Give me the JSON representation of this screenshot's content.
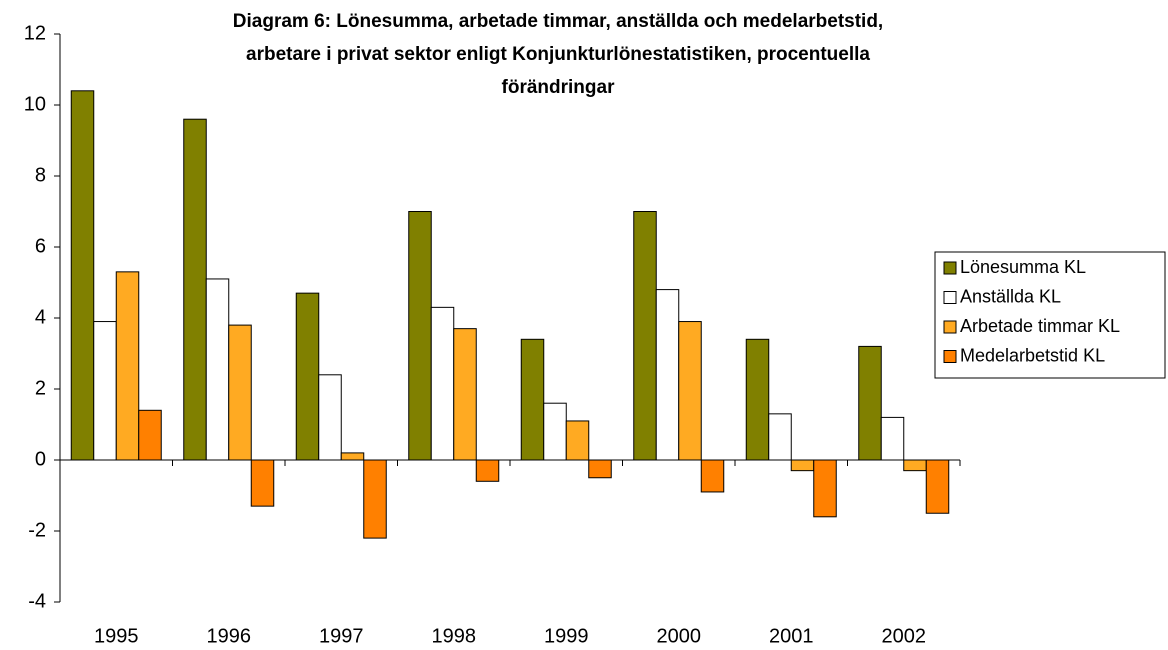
{
  "chart_data": {
    "type": "bar",
    "title": [
      "Diagram 6: Lönesumma, arbetade timmar, anställda och medelarbetstid,",
      "arbetare i privat sektor enligt Konjunkturlönestatistiken, procentuella",
      "förändringar"
    ],
    "categories": [
      "1995",
      "1996",
      "1997",
      "1998",
      "1999",
      "2000",
      "2001",
      "2002"
    ],
    "series": [
      {
        "name": "Lönesumma KL",
        "color": "#808000",
        "values": [
          10.4,
          9.6,
          4.7,
          7.0,
          3.4,
          7.0,
          3.4,
          3.2
        ]
      },
      {
        "name": "Anställda KL",
        "color": "#ffffff",
        "values": [
          3.9,
          5.1,
          2.4,
          4.3,
          1.6,
          4.8,
          1.3,
          1.2
        ]
      },
      {
        "name": "Arbetade timmar KL",
        "color": "#ffaa22",
        "values": [
          5.3,
          3.8,
          0.2,
          3.7,
          1.1,
          3.9,
          -0.3,
          -0.3
        ]
      },
      {
        "name": "Medelarbetstid KL",
        "color": "#ff8000",
        "values": [
          1.4,
          -1.3,
          -2.2,
          -0.6,
          -0.5,
          -0.9,
          -1.6,
          -1.5
        ]
      }
    ],
    "ylim": [
      -4,
      12
    ],
    "yticks": [
      -4,
      -2,
      0,
      2,
      4,
      6,
      8,
      10,
      12
    ],
    "grid": false,
    "legend": "right"
  }
}
